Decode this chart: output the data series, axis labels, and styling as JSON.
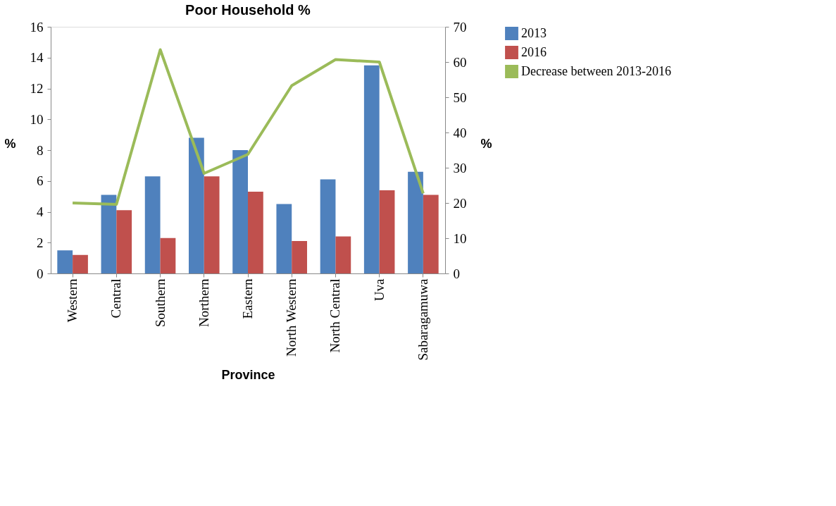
{
  "chart_data": {
    "type": "bar",
    "title": "Poor Household %",
    "xlabel": "Province",
    "ylabel": "%",
    "y2label": "%",
    "categories": [
      "Western",
      "Central",
      "Southern",
      "Northern",
      "Eastern",
      "North Western",
      "North Central",
      "Uva",
      "Sabaragamuwa"
    ],
    "series": [
      {
        "name": "2013",
        "color": "#4f81bd",
        "values": [
          1.5,
          5.1,
          6.3,
          8.8,
          8.0,
          4.5,
          6.1,
          13.5,
          6.6
        ]
      },
      {
        "name": "2016",
        "color": "#c0504d",
        "values": [
          1.2,
          4.1,
          2.3,
          6.3,
          5.3,
          2.1,
          2.4,
          5.4,
          5.1
        ]
      },
      {
        "name": "Decrease between 2013-2016",
        "color": "#9bbb59",
        "type": "line",
        "axis": "y2",
        "values": [
          20,
          19.6,
          63.5,
          28.4,
          33.8,
          53.3,
          60.7,
          60,
          22.7
        ]
      }
    ],
    "ylim": [
      0,
      16
    ],
    "yticks": [
      0,
      2,
      4,
      6,
      8,
      10,
      12,
      14,
      16
    ],
    "y2lim": [
      0,
      70
    ],
    "y2ticks": [
      0,
      10,
      20,
      30,
      40,
      50,
      60,
      70
    ],
    "grid": false,
    "legend": "right",
    "marker": "none",
    "line_style": "solid"
  }
}
